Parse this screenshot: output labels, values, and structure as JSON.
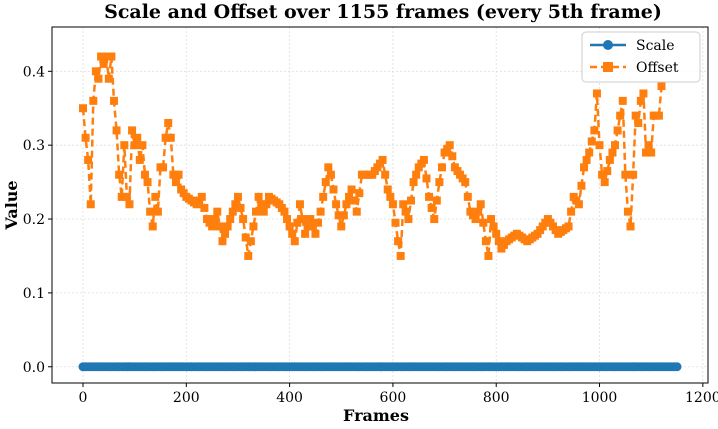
{
  "chart_data": {
    "type": "line",
    "title": "Scale and Offset over 1155 frames (every 5th frame)",
    "xlabel": "Frames",
    "ylabel": "Value",
    "xlim": [
      -60,
      1210
    ],
    "ylim": [
      -0.022,
      0.46
    ],
    "xticks": [
      0,
      200,
      400,
      600,
      800,
      1000,
      1200
    ],
    "xtick_labels": [
      "0",
      "200",
      "400",
      "600",
      "800",
      "1000",
      "1200"
    ],
    "yticks": [
      0.0,
      0.1,
      0.2,
      0.3,
      0.4
    ],
    "ytick_labels": [
      "0.0",
      "0.1",
      "0.2",
      "0.3",
      "0.4"
    ],
    "grid": true,
    "legend_position": "top-right",
    "series": [
      {
        "name": "Scale",
        "color": "#1f77b4",
        "marker": "circle",
        "linestyle": "solid",
        "x_start": 0,
        "x_step": 5,
        "x_end": 1150,
        "constant_value": 0.0
      },
      {
        "name": "Offset",
        "color": "#ff7f0e",
        "marker": "square",
        "linestyle": "dashed",
        "x_start": 0,
        "x_step": 5,
        "x_end": 1120,
        "keyframes": [
          [
            0,
            0.35
          ],
          [
            5,
            0.31
          ],
          [
            10,
            0.28
          ],
          [
            15,
            0.22
          ],
          [
            20,
            0.36
          ],
          [
            25,
            0.4
          ],
          [
            30,
            0.39
          ],
          [
            35,
            0.42
          ],
          [
            40,
            0.41
          ],
          [
            45,
            0.42
          ],
          [
            50,
            0.39
          ],
          [
            55,
            0.42
          ],
          [
            60,
            0.36
          ],
          [
            65,
            0.32
          ],
          [
            70,
            0.26
          ],
          [
            75,
            0.23
          ],
          [
            80,
            0.3
          ],
          [
            85,
            0.23
          ],
          [
            90,
            0.22
          ],
          [
            95,
            0.32
          ],
          [
            100,
            0.3
          ],
          [
            105,
            0.31
          ],
          [
            110,
            0.28
          ],
          [
            115,
            0.3
          ],
          [
            120,
            0.26
          ],
          [
            125,
            0.25
          ],
          [
            130,
            0.21
          ],
          [
            135,
            0.19
          ],
          [
            140,
            0.23
          ],
          [
            145,
            0.21
          ],
          [
            150,
            0.27
          ],
          [
            155,
            0.27
          ],
          [
            160,
            0.31
          ],
          [
            165,
            0.33
          ],
          [
            170,
            0.31
          ],
          [
            175,
            0.26
          ],
          [
            180,
            0.25
          ],
          [
            185,
            0.26
          ],
          [
            190,
            0.24
          ],
          [
            200,
            0.23
          ],
          [
            220,
            0.22
          ],
          [
            230,
            0.23
          ],
          [
            240,
            0.2
          ],
          [
            250,
            0.19
          ],
          [
            260,
            0.21
          ],
          [
            270,
            0.17
          ],
          [
            280,
            0.19
          ],
          [
            290,
            0.21
          ],
          [
            300,
            0.23
          ],
          [
            310,
            0.2
          ],
          [
            320,
            0.15
          ],
          [
            330,
            0.19
          ],
          [
            340,
            0.23
          ],
          [
            350,
            0.21
          ],
          [
            360,
            0.23
          ],
          [
            380,
            0.22
          ],
          [
            390,
            0.21
          ],
          [
            400,
            0.19
          ],
          [
            410,
            0.17
          ],
          [
            420,
            0.22
          ],
          [
            430,
            0.18
          ],
          [
            440,
            0.2
          ],
          [
            450,
            0.18
          ],
          [
            460,
            0.21
          ],
          [
            470,
            0.25
          ],
          [
            475,
            0.27
          ],
          [
            480,
            0.26
          ],
          [
            490,
            0.22
          ],
          [
            500,
            0.19
          ],
          [
            510,
            0.22
          ],
          [
            520,
            0.24
          ],
          [
            530,
            0.21
          ],
          [
            540,
            0.26
          ],
          [
            560,
            0.26
          ],
          [
            570,
            0.27
          ],
          [
            580,
            0.28
          ],
          [
            590,
            0.24
          ],
          [
            600,
            0.22
          ],
          [
            610,
            0.17
          ],
          [
            615,
            0.15
          ],
          [
            620,
            0.22
          ],
          [
            630,
            0.2
          ],
          [
            640,
            0.25
          ],
          [
            650,
            0.27
          ],
          [
            660,
            0.28
          ],
          [
            670,
            0.23
          ],
          [
            680,
            0.2
          ],
          [
            690,
            0.25
          ],
          [
            700,
            0.29
          ],
          [
            710,
            0.3
          ],
          [
            720,
            0.27
          ],
          [
            730,
            0.26
          ],
          [
            740,
            0.25
          ],
          [
            750,
            0.21
          ],
          [
            760,
            0.2
          ],
          [
            770,
            0.22
          ],
          [
            780,
            0.17
          ],
          [
            785,
            0.15
          ],
          [
            790,
            0.2
          ],
          [
            800,
            0.18
          ],
          [
            810,
            0.16
          ],
          [
            820,
            0.17
          ],
          [
            840,
            0.18
          ],
          [
            860,
            0.17
          ],
          [
            880,
            0.18
          ],
          [
            900,
            0.2
          ],
          [
            920,
            0.18
          ],
          [
            940,
            0.19
          ],
          [
            950,
            0.23
          ],
          [
            960,
            0.22
          ],
          [
            970,
            0.27
          ],
          [
            980,
            0.29
          ],
          [
            990,
            0.32
          ],
          [
            995,
            0.37
          ],
          [
            1000,
            0.3
          ],
          [
            1005,
            0.26
          ],
          [
            1010,
            0.25
          ],
          [
            1020,
            0.28
          ],
          [
            1030,
            0.3
          ],
          [
            1040,
            0.34
          ],
          [
            1045,
            0.36
          ],
          [
            1050,
            0.26
          ],
          [
            1055,
            0.21
          ],
          [
            1060,
            0.19
          ],
          [
            1065,
            0.26
          ],
          [
            1070,
            0.34
          ],
          [
            1075,
            0.33
          ],
          [
            1080,
            0.36
          ],
          [
            1085,
            0.37
          ],
          [
            1090,
            0.29
          ],
          [
            1095,
            0.3
          ],
          [
            1100,
            0.29
          ],
          [
            1105,
            0.34
          ],
          [
            1110,
            0.34
          ],
          [
            1115,
            0.34
          ],
          [
            1120,
            0.38
          ]
        ]
      }
    ]
  }
}
